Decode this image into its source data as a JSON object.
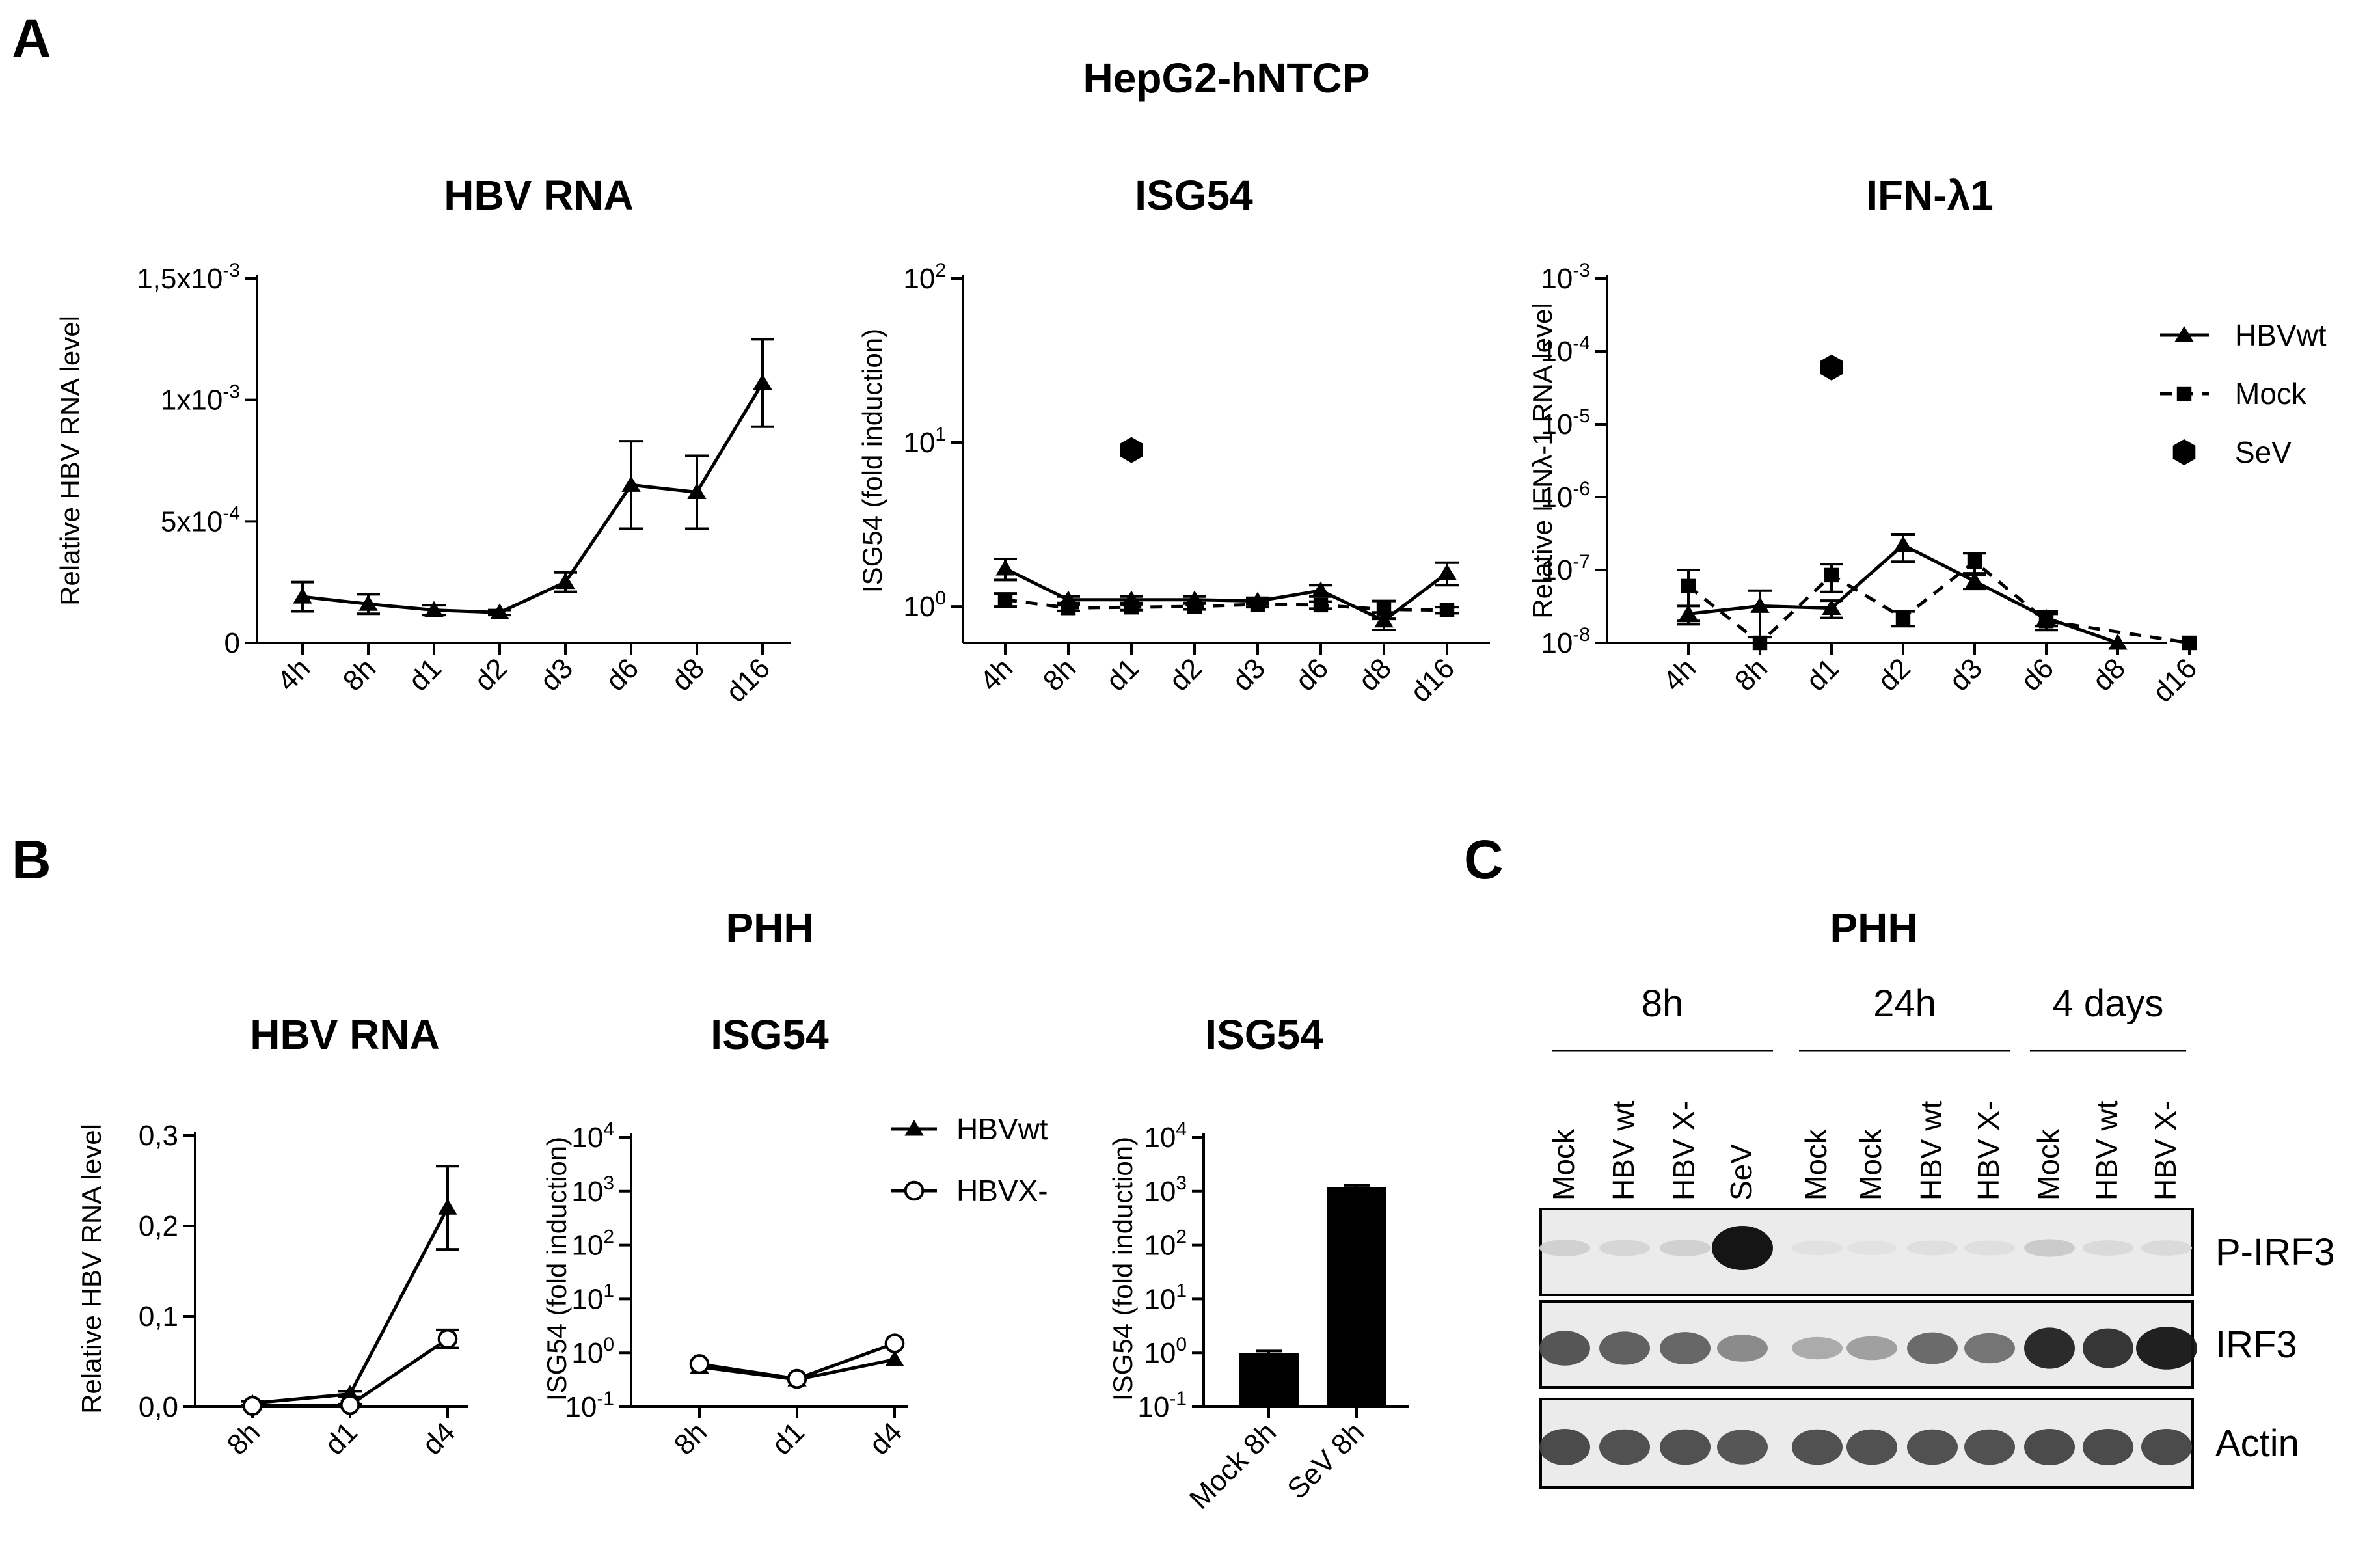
{
  "panels": {
    "A": {
      "letter": "A",
      "title": "HepG2-hNTCP"
    },
    "B": {
      "letter": "B",
      "title": "PHH"
    },
    "C": {
      "letter": "C",
      "title": "PHH"
    }
  },
  "legend_A": [
    {
      "name": "HBVwt",
      "marker": "triangle",
      "line": "solid"
    },
    {
      "name": "Mock",
      "marker": "square",
      "line": "dashed"
    },
    {
      "name": "SeV",
      "marker": "hexagon",
      "line": "none"
    }
  ],
  "legend_B": [
    {
      "name": "HBVwt",
      "marker": "triangle"
    },
    {
      "name": "HBVX-",
      "marker": "open-circle"
    }
  ],
  "chart_data": [
    {
      "id": "A1",
      "type": "line",
      "title": "HBV RNA",
      "ylabel": "Relative HBV RNA level",
      "yscale": "linear",
      "ylim": [
        0,
        0.0015
      ],
      "yticks": [
        0,
        0.0005,
        0.001,
        0.0015
      ],
      "ytick_labels": [
        "0",
        "5x10",
        "1x10",
        "1,5x10"
      ],
      "ytick_sups": [
        "",
        "-4",
        "-3",
        "-3"
      ],
      "categories": [
        "4h",
        "8h",
        "d1",
        "d2",
        "d3",
        "d6",
        "d8",
        "d16"
      ],
      "series": [
        {
          "name": "HBVwt",
          "marker": "triangle",
          "line": "solid",
          "values": [
            0.00019,
            0.00016,
            0.000135,
            0.000125,
            0.00025,
            0.00065,
            0.00062,
            0.00107
          ],
          "errors": [
            6e-05,
            4e-05,
            2e-05,
            1e-05,
            4e-05,
            0.00018,
            0.00015,
            0.00018
          ]
        }
      ]
    },
    {
      "id": "A2",
      "type": "line",
      "title": "ISG54",
      "ylabel": "ISG54 (fold induction)",
      "yscale": "log",
      "ylim": [
        0.6,
        100
      ],
      "yticks": [
        1,
        10,
        100
      ],
      "ytick_labels": [
        "10",
        "10",
        "10"
      ],
      "ytick_sups": [
        "0",
        "1",
        "2"
      ],
      "categories": [
        "4h",
        "8h",
        "d1",
        "d2",
        "d3",
        "d6",
        "d8",
        "d16"
      ],
      "series": [
        {
          "name": "HBVwt",
          "marker": "triangle",
          "line": "solid",
          "values": [
            1.7,
            1.1,
            1.1,
            1.1,
            1.08,
            1.25,
            0.82,
            1.6
          ],
          "errors": [
            0.25,
            0.05,
            0.05,
            0.05,
            0.05,
            0.1,
            0.1,
            0.25
          ]
        },
        {
          "name": "Mock",
          "marker": "square",
          "line": "dashed",
          "values": [
            1.1,
            0.98,
            0.99,
            1.0,
            1.03,
            1.02,
            0.96,
            0.95
          ],
          "errors": [
            0.1,
            0.04,
            0.04,
            0.04,
            0.04,
            0.05,
            0.12,
            0.04
          ]
        },
        {
          "name": "SeV",
          "marker": "hexagon",
          "line": "none",
          "values": [
            null,
            null,
            9.0,
            null,
            null,
            null,
            null,
            null
          ],
          "errors": [
            0,
            0,
            0,
            0,
            0,
            0,
            0,
            0
          ]
        }
      ]
    },
    {
      "id": "A3",
      "type": "line",
      "title": "IFN-λ1",
      "ylabel": "Relative IFNλ-1 RNA level",
      "yscale": "log",
      "ylim": [
        1e-08,
        0.001
      ],
      "yticks": [
        1e-08,
        1e-07,
        1e-06,
        1e-05,
        0.0001,
        0.001
      ],
      "ytick_labels": [
        "10",
        "10",
        "10",
        "10",
        "10",
        "10"
      ],
      "ytick_sups": [
        "-8",
        "-7",
        "-6",
        "-5",
        "-4",
        "-3"
      ],
      "categories": [
        "4h",
        "8h",
        "d1",
        "d2",
        "d3",
        "d6",
        "d8",
        "d16"
      ],
      "series": [
        {
          "name": "HBVwt",
          "marker": "triangle",
          "line": "solid",
          "values": [
            2.5e-08,
            3.2e-08,
            3e-08,
            2.2e-07,
            7e-08,
            2.2e-08,
            1e-08,
            null
          ],
          "errors": [
            7e-09,
            2e-08,
            8e-09,
            9e-08,
            1.5e-08,
            5e-09,
            0,
            0
          ]
        },
        {
          "name": "Mock",
          "marker": "square",
          "line": "dashed",
          "values": [
            6e-08,
            1e-08,
            8.5e-08,
            2.2e-08,
            1.3e-07,
            2e-08,
            null,
            1e-08
          ],
          "errors": [
            4e-08,
            0,
            3.5e-08,
            5e-09,
            4e-08,
            5e-09,
            0,
            0
          ]
        },
        {
          "name": "SeV",
          "marker": "hexagon",
          "line": "none",
          "values": [
            null,
            null,
            6e-05,
            null,
            null,
            null,
            null,
            null
          ],
          "errors": [
            0,
            0,
            0,
            0,
            0,
            0,
            0,
            0
          ]
        }
      ]
    },
    {
      "id": "B1",
      "type": "line",
      "title": "HBV RNA",
      "ylabel": "Relative HBV RNA level",
      "yscale": "linear",
      "ylim": [
        0,
        0.3
      ],
      "yticks": [
        0,
        0.1,
        0.2,
        0.3
      ],
      "ytick_labels": [
        "0,0",
        "0,1",
        "0,2",
        "0,3"
      ],
      "ytick_sups": [
        "",
        "",
        "",
        ""
      ],
      "categories": [
        "8h",
        "d1",
        "d4"
      ],
      "series": [
        {
          "name": "HBVwt",
          "marker": "triangle",
          "line": "solid",
          "values": [
            0.004,
            0.014,
            0.22
          ],
          "errors": [
            0.002,
            0.003,
            0.046
          ]
        },
        {
          "name": "HBVX-",
          "marker": "open-circle",
          "line": "solid",
          "values": [
            0.001,
            0.002,
            0.075
          ],
          "errors": [
            0.001,
            0.001,
            0.01
          ]
        }
      ]
    },
    {
      "id": "B2",
      "type": "line",
      "title": "ISG54",
      "ylabel": "ISG54 (fold induction)",
      "yscale": "log",
      "ylim": [
        0.1,
        10000
      ],
      "yticks": [
        0.1,
        1,
        10,
        100,
        1000,
        10000
      ],
      "ytick_labels": [
        "10",
        "10",
        "10",
        "10",
        "10",
        "10"
      ],
      "ytick_sups": [
        "-1",
        "0",
        "1",
        "2",
        "3",
        "4"
      ],
      "categories": [
        "8h",
        "d1",
        "d4"
      ],
      "series": [
        {
          "name": "HBVwt",
          "marker": "triangle",
          "line": "solid",
          "values": [
            0.55,
            0.32,
            0.75
          ],
          "errors": [
            0,
            0,
            0
          ]
        },
        {
          "name": "HBVX-",
          "marker": "open-circle",
          "line": "solid",
          "values": [
            0.62,
            0.33,
            1.5
          ],
          "errors": [
            0,
            0,
            0
          ]
        }
      ]
    },
    {
      "id": "B3",
      "type": "bar",
      "title": "ISG54",
      "ylabel": "ISG54 (fold induction)",
      "yscale": "log",
      "ylim": [
        0.1,
        10000
      ],
      "yticks": [
        0.1,
        1,
        10,
        100,
        1000,
        10000
      ],
      "ytick_labels": [
        "10",
        "10",
        "10",
        "10",
        "10",
        "10"
      ],
      "ytick_sups": [
        "-1",
        "0",
        "1",
        "2",
        "3",
        "4"
      ],
      "categories": [
        "Mock 8h",
        "SeV 8h"
      ],
      "values": [
        1.0,
        1200
      ],
      "errors": [
        0.08,
        80
      ]
    }
  ],
  "blot": {
    "time_groups": [
      {
        "label": "8h",
        "lanes": [
          0,
          1,
          2,
          3
        ]
      },
      {
        "label": "24h",
        "lanes": [
          4,
          5,
          6,
          7
        ]
      },
      {
        "label": "4 days",
        "lanes": [
          8,
          9,
          10
        ]
      }
    ],
    "lanes": [
      "Mock",
      "HBV wt",
      "HBV X-",
      "SeV",
      "Mock",
      "Mock",
      "HBV wt",
      "HBV X-",
      "Mock",
      "HBV wt",
      "HBV X-"
    ],
    "rows": [
      {
        "label": "P-IRF3",
        "intensities": [
          0.12,
          0.1,
          0.12,
          1.0,
          0.05,
          0.04,
          0.06,
          0.06,
          0.15,
          0.08,
          0.08
        ]
      },
      {
        "label": "IRF3",
        "intensities": [
          0.7,
          0.65,
          0.62,
          0.45,
          0.3,
          0.35,
          0.6,
          0.55,
          0.9,
          0.85,
          0.95
        ]
      },
      {
        "label": "Actin",
        "intensities": [
          0.75,
          0.72,
          0.72,
          0.7,
          0.72,
          0.72,
          0.72,
          0.72,
          0.75,
          0.75,
          0.75
        ]
      }
    ]
  }
}
